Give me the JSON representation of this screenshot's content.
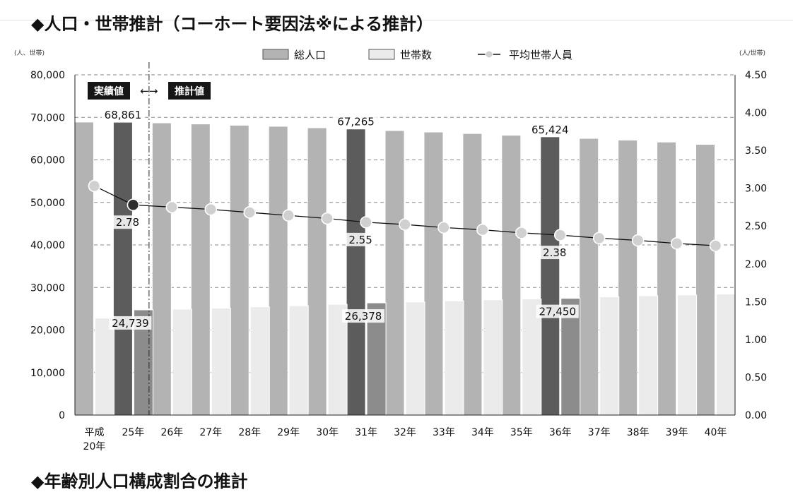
{
  "page": {
    "heading": "◆人口・世帯推計（コーホート要因法※による推計）",
    "next_heading": "◆年齢別人口構成割合の推計"
  },
  "chart_data": {
    "type": "bar",
    "title": "",
    "left_axis_unit": "(人、世帯)",
    "right_axis_unit": "(人/世帯)",
    "categories": [
      "平成\n20年",
      "25年",
      "26年",
      "27年",
      "28年",
      "29年",
      "30年",
      "31年",
      "32年",
      "33年",
      "34年",
      "35年",
      "36年",
      "37年",
      "38年",
      "39年",
      "40年"
    ],
    "series": [
      {
        "name": "総人口",
        "axis": "left",
        "color": "#b3b3b3",
        "values": [
          68900,
          68861,
          68700,
          68450,
          68150,
          67900,
          67550,
          67265,
          66900,
          66550,
          66200,
          65800,
          65424,
          65050,
          64650,
          64200,
          63650
        ]
      },
      {
        "name": "世帯数",
        "axis": "left",
        "color": "#ebebeb",
        "values": [
          22800,
          24739,
          24900,
          25150,
          25450,
          25700,
          26050,
          26378,
          26600,
          26850,
          27100,
          27300,
          27450,
          27800,
          28050,
          28250,
          28450
        ]
      },
      {
        "name": "平均世帯人員",
        "axis": "right",
        "type": "line",
        "color": "#d0d0d0",
        "values": [
          3.03,
          2.78,
          2.75,
          2.72,
          2.68,
          2.64,
          2.6,
          2.55,
          2.52,
          2.48,
          2.45,
          2.41,
          2.38,
          2.34,
          2.31,
          2.27,
          2.24
        ]
      }
    ],
    "highlight_categories": [
      1,
      7,
      12
    ],
    "highlight_color": "#5c5c5c",
    "ylim_left": [
      0,
      80000
    ],
    "yticks_left": [
      "0",
      "10,000",
      "20,000",
      "30,000",
      "40,000",
      "50,000",
      "60,000",
      "70,000",
      "80,000"
    ],
    "ylim_right": [
      0,
      4.5
    ],
    "yticks_right": [
      "0.00",
      "0.50",
      "1.00",
      "1.50",
      "2.00",
      "2.50",
      "3.00",
      "3.50",
      "4.00",
      "4.50"
    ],
    "grid": "horizontal dashed",
    "legend_position": "top-center",
    "period_labels": {
      "actual": "実績値",
      "projected": "推計値",
      "arrow": "←→"
    },
    "data_labels": [
      {
        "series": 0,
        "index": 1,
        "text": "68,861"
      },
      {
        "series": 0,
        "index": 7,
        "text": "67,265"
      },
      {
        "series": 0,
        "index": 12,
        "text": "65,424"
      },
      {
        "series": 1,
        "index": 1,
        "text": "24,739"
      },
      {
        "series": 1,
        "index": 7,
        "text": "26,378"
      },
      {
        "series": 1,
        "index": 12,
        "text": "27,450"
      },
      {
        "series": 2,
        "index": 1,
        "text": "2.78"
      },
      {
        "series": 2,
        "index": 7,
        "text": "2.55"
      },
      {
        "series": 2,
        "index": 12,
        "text": "2.38"
      }
    ]
  }
}
